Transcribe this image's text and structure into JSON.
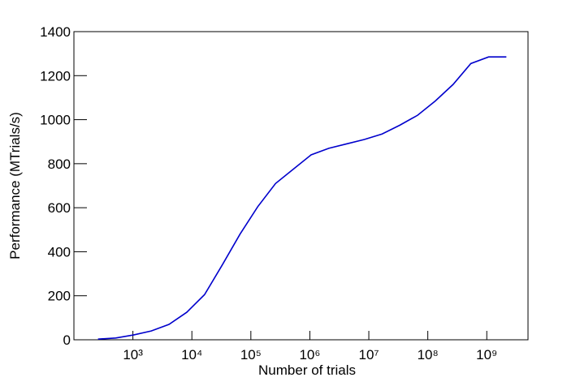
{
  "chart_data": {
    "type": "line",
    "xlabel": "Number of trials",
    "ylabel": "Performance (MTrials/s)",
    "xscale": "log",
    "x": [
      256,
      512,
      1024,
      2048,
      4096,
      8192,
      16384,
      32768,
      65536,
      131072,
      262144,
      524288,
      1048576,
      2097152,
      4194304,
      8388608,
      16777216,
      33554432,
      67108864,
      134217728,
      268435456,
      536870912,
      1073741824,
      2147483648
    ],
    "series": [
      {
        "name": "Performance",
        "color": "#0000cc",
        "values": [
          3,
          8,
          22,
          40,
          70,
          125,
          205,
          340,
          480,
          605,
          710,
          775,
          840,
          870,
          890,
          910,
          935,
          975,
          1020,
          1085,
          1160,
          1255,
          1285,
          1285
        ]
      }
    ],
    "xlim": [
      100,
      5000000000
    ],
    "ylim": [
      0,
      1400
    ],
    "xticks": [
      {
        "value": 1000,
        "label": "10³"
      },
      {
        "value": 10000,
        "label": "10⁴"
      },
      {
        "value": 100000,
        "label": "10⁵"
      },
      {
        "value": 1000000,
        "label": "10⁶"
      },
      {
        "value": 10000000,
        "label": "10⁷"
      },
      {
        "value": 100000000,
        "label": "10⁸"
      },
      {
        "value": 1000000000,
        "label": "10⁹"
      }
    ],
    "yticks": [
      0,
      200,
      400,
      600,
      800,
      1000,
      1200,
      1400
    ],
    "grid": false
  }
}
